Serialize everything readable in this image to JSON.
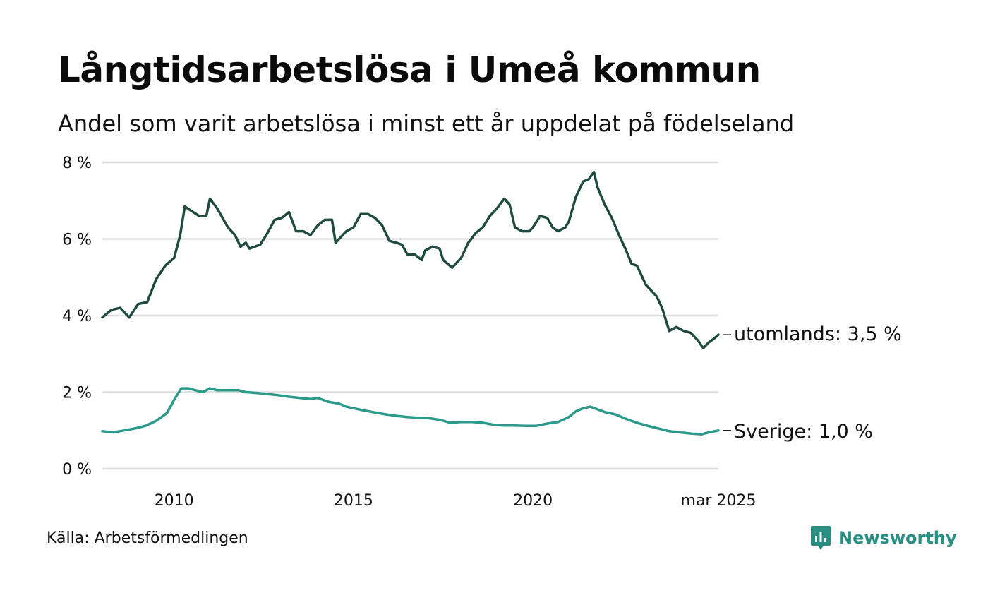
{
  "title": "Långtidsarbetslösa i Umeå kommun",
  "subtitle": "Andel som varit arbetslösa i minst ett år uppdelat på födelseland",
  "source": "Källa: Arbetsförmedlingen",
  "brand": {
    "name": "Newsworthy",
    "icon": "newsworthy-logo-icon",
    "color": "#2a8f83"
  },
  "colors": {
    "utomlands": "#1f4a40",
    "sverige": "#2a9a8a",
    "grid": "#dddddd"
  },
  "chart_data": {
    "type": "line",
    "title": "Långtidsarbetslösa i Umeå kommun",
    "subtitle": "Andel som varit arbetslösa i minst ett år uppdelat på födelseland",
    "xlabel": "",
    "ylabel": "",
    "xlim": [
      2008.0,
      2025.17
    ],
    "ylim": [
      0,
      8
    ],
    "y_ticks": [
      "0 %",
      "2 %",
      "4 %",
      "6 %",
      "8 %"
    ],
    "x_ticks": [
      {
        "x": 2010,
        "label": "2010"
      },
      {
        "x": 2015,
        "label": "2015"
      },
      {
        "x": 2020,
        "label": "2020"
      },
      {
        "x": 2025.17,
        "label": "mar 2025"
      }
    ],
    "grid": true,
    "legend": "end-labels",
    "series": [
      {
        "name": "utomlands",
        "end_label": "utomlands: 3,5 %",
        "points": [
          [
            2008.0,
            3.95
          ],
          [
            2008.25,
            4.15
          ],
          [
            2008.5,
            4.2
          ],
          [
            2008.75,
            3.95
          ],
          [
            2009.0,
            4.3
          ],
          [
            2009.25,
            4.35
          ],
          [
            2009.5,
            4.95
          ],
          [
            2009.75,
            5.3
          ],
          [
            2010.0,
            5.5
          ],
          [
            2010.17,
            6.1
          ],
          [
            2010.3,
            6.85
          ],
          [
            2010.45,
            6.75
          ],
          [
            2010.7,
            6.6
          ],
          [
            2010.9,
            6.6
          ],
          [
            2011.0,
            7.05
          ],
          [
            2011.2,
            6.8
          ],
          [
            2011.5,
            6.3
          ],
          [
            2011.7,
            6.1
          ],
          [
            2011.85,
            5.8
          ],
          [
            2012.0,
            5.9
          ],
          [
            2012.1,
            5.75
          ],
          [
            2012.4,
            5.85
          ],
          [
            2012.6,
            6.15
          ],
          [
            2012.8,
            6.5
          ],
          [
            2013.0,
            6.55
          ],
          [
            2013.2,
            6.7
          ],
          [
            2013.4,
            6.2
          ],
          [
            2013.6,
            6.2
          ],
          [
            2013.8,
            6.1
          ],
          [
            2014.0,
            6.35
          ],
          [
            2014.2,
            6.5
          ],
          [
            2014.4,
            6.5
          ],
          [
            2014.5,
            5.9
          ],
          [
            2014.8,
            6.2
          ],
          [
            2015.0,
            6.3
          ],
          [
            2015.2,
            6.65
          ],
          [
            2015.4,
            6.65
          ],
          [
            2015.6,
            6.55
          ],
          [
            2015.8,
            6.35
          ],
          [
            2016.0,
            5.95
          ],
          [
            2016.2,
            5.9
          ],
          [
            2016.35,
            5.85
          ],
          [
            2016.5,
            5.6
          ],
          [
            2016.7,
            5.6
          ],
          [
            2016.9,
            5.45
          ],
          [
            2017.0,
            5.7
          ],
          [
            2017.2,
            5.8
          ],
          [
            2017.4,
            5.75
          ],
          [
            2017.5,
            5.45
          ],
          [
            2017.75,
            5.25
          ],
          [
            2018.0,
            5.5
          ],
          [
            2018.2,
            5.9
          ],
          [
            2018.4,
            6.15
          ],
          [
            2018.6,
            6.3
          ],
          [
            2018.8,
            6.6
          ],
          [
            2019.0,
            6.8
          ],
          [
            2019.2,
            7.05
          ],
          [
            2019.35,
            6.9
          ],
          [
            2019.5,
            6.3
          ],
          [
            2019.7,
            6.2
          ],
          [
            2019.9,
            6.2
          ],
          [
            2020.0,
            6.3
          ],
          [
            2020.2,
            6.6
          ],
          [
            2020.4,
            6.55
          ],
          [
            2020.55,
            6.3
          ],
          [
            2020.7,
            6.2
          ],
          [
            2020.9,
            6.3
          ],
          [
            2021.0,
            6.45
          ],
          [
            2021.2,
            7.1
          ],
          [
            2021.4,
            7.5
          ],
          [
            2021.55,
            7.55
          ],
          [
            2021.7,
            7.75
          ],
          [
            2021.8,
            7.35
          ],
          [
            2022.0,
            6.9
          ],
          [
            2022.2,
            6.55
          ],
          [
            2022.4,
            6.1
          ],
          [
            2022.6,
            5.7
          ],
          [
            2022.75,
            5.35
          ],
          [
            2022.9,
            5.3
          ],
          [
            2023.0,
            5.1
          ],
          [
            2023.15,
            4.8
          ],
          [
            2023.3,
            4.65
          ],
          [
            2023.45,
            4.5
          ],
          [
            2023.6,
            4.2
          ],
          [
            2023.8,
            3.6
          ],
          [
            2024.0,
            3.7
          ],
          [
            2024.2,
            3.6
          ],
          [
            2024.4,
            3.55
          ],
          [
            2024.6,
            3.35
          ],
          [
            2024.75,
            3.15
          ],
          [
            2024.9,
            3.3
          ],
          [
            2025.05,
            3.4
          ],
          [
            2025.17,
            3.5
          ]
        ]
      },
      {
        "name": "Sverige",
        "end_label": "Sverige: 1,0 %",
        "points": [
          [
            2008.0,
            0.98
          ],
          [
            2008.3,
            0.95
          ],
          [
            2008.6,
            1.0
          ],
          [
            2008.9,
            1.05
          ],
          [
            2009.2,
            1.12
          ],
          [
            2009.5,
            1.25
          ],
          [
            2009.8,
            1.45
          ],
          [
            2010.0,
            1.8
          ],
          [
            2010.2,
            2.1
          ],
          [
            2010.4,
            2.1
          ],
          [
            2010.6,
            2.05
          ],
          [
            2010.8,
            2.0
          ],
          [
            2011.0,
            2.1
          ],
          [
            2011.2,
            2.05
          ],
          [
            2011.5,
            2.05
          ],
          [
            2011.8,
            2.05
          ],
          [
            2012.0,
            2.0
          ],
          [
            2012.3,
            1.98
          ],
          [
            2012.6,
            1.95
          ],
          [
            2012.9,
            1.92
          ],
          [
            2013.2,
            1.88
          ],
          [
            2013.5,
            1.85
          ],
          [
            2013.8,
            1.82
          ],
          [
            2014.0,
            1.85
          ],
          [
            2014.3,
            1.75
          ],
          [
            2014.6,
            1.7
          ],
          [
            2014.8,
            1.62
          ],
          [
            2015.0,
            1.58
          ],
          [
            2015.3,
            1.52
          ],
          [
            2015.6,
            1.47
          ],
          [
            2015.9,
            1.42
          ],
          [
            2016.2,
            1.38
          ],
          [
            2016.5,
            1.35
          ],
          [
            2016.8,
            1.33
          ],
          [
            2017.1,
            1.32
          ],
          [
            2017.4,
            1.28
          ],
          [
            2017.7,
            1.2
          ],
          [
            2018.0,
            1.22
          ],
          [
            2018.3,
            1.22
          ],
          [
            2018.6,
            1.2
          ],
          [
            2018.9,
            1.15
          ],
          [
            2019.2,
            1.13
          ],
          [
            2019.5,
            1.13
          ],
          [
            2019.8,
            1.12
          ],
          [
            2020.1,
            1.12
          ],
          [
            2020.4,
            1.18
          ],
          [
            2020.7,
            1.22
          ],
          [
            2021.0,
            1.35
          ],
          [
            2021.2,
            1.5
          ],
          [
            2021.4,
            1.58
          ],
          [
            2021.6,
            1.62
          ],
          [
            2021.8,
            1.55
          ],
          [
            2022.0,
            1.48
          ],
          [
            2022.3,
            1.42
          ],
          [
            2022.6,
            1.3
          ],
          [
            2022.9,
            1.2
          ],
          [
            2023.2,
            1.12
          ],
          [
            2023.5,
            1.05
          ],
          [
            2023.8,
            0.98
          ],
          [
            2024.1,
            0.95
          ],
          [
            2024.4,
            0.92
          ],
          [
            2024.7,
            0.9
          ],
          [
            2024.9,
            0.95
          ],
          [
            2025.17,
            1.0
          ]
        ]
      }
    ]
  }
}
